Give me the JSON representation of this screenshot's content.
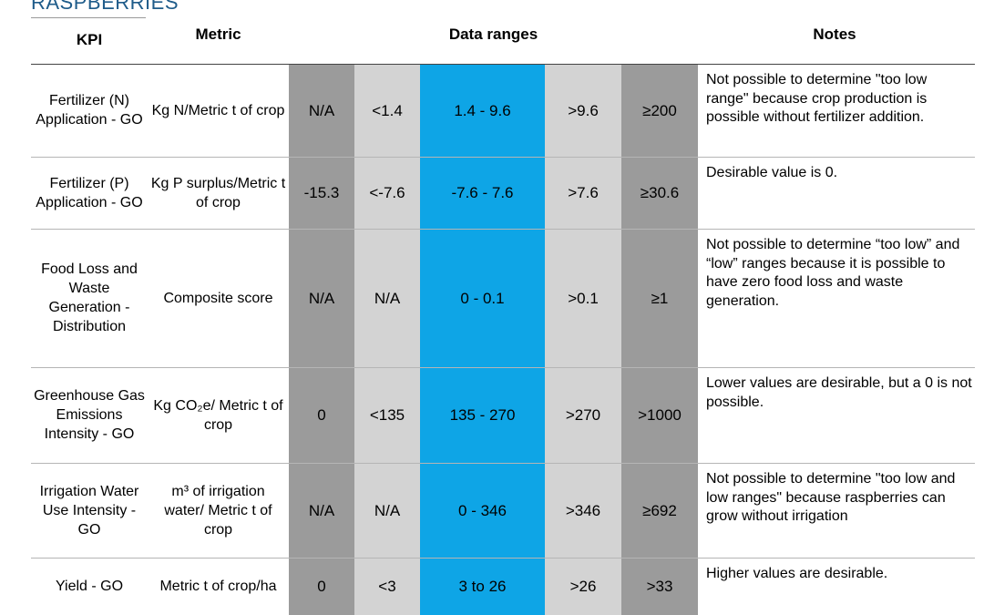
{
  "heading": "RASPBERRIES",
  "headers": {
    "kpi": "KPI",
    "metric": "Metric",
    "ranges": "Data ranges",
    "notes": "Notes"
  },
  "colors": {
    "dark_band": "#9b9b9b",
    "light_band": "#d3d3d3",
    "blue_band": "#0ea5e6"
  },
  "rows": [
    {
      "kpi": "Fertilizer (N) Application - GO",
      "metric": "Kg N/Metric t of crop",
      "ranges": [
        "N/A",
        "<1.4",
        "1.4 - 9.6",
        ">9.6",
        "≥200"
      ],
      "notes": "Not possible to determine \"too low range\" because crop production is possible without fertilizer addition."
    },
    {
      "kpi": "Fertilizer (P) Application - GO",
      "metric": "Kg P surplus/Metric t of crop",
      "ranges": [
        "-15.3",
        "<-7.6",
        "-7.6 - 7.6",
        ">7.6",
        "≥30.6"
      ],
      "notes": "Desirable value is 0."
    },
    {
      "kpi": "Food Loss and Waste Generation - Distribution",
      "metric": "Composite score",
      "ranges": [
        "N/A",
        "N/A",
        "0 - 0.1",
        ">0.1",
        "≥1"
      ],
      "notes": "Not possible to determine “too low” and “low” ranges because it is possible to have zero food loss and waste generation."
    },
    {
      "kpi": "Greenhouse Gas Emissions Intensity - GO",
      "metric": "Kg CO₂e/ Metric t of crop",
      "ranges": [
        "0",
        "<135",
        "135 - 270",
        ">270",
        ">1000"
      ],
      "notes": "Lower values are desirable, but a 0 is not possible."
    },
    {
      "kpi": "Irrigation Water Use Intensity - GO",
      "metric": "m³ of irrigation water/ Metric t of crop",
      "ranges": [
        "N/A",
        "N/A",
        "0 - 346",
        ">346",
        "≥692"
      ],
      "notes": "Not possible to determine \"too low and low ranges\" because raspberries can grow without irrigation"
    },
    {
      "kpi": "Yield - GO",
      "metric": "Metric t of crop/ha",
      "ranges": [
        "0",
        "<3",
        "3 to 26",
        ">26",
        ">33"
      ],
      "notes": "Higher values are desirable."
    }
  ]
}
